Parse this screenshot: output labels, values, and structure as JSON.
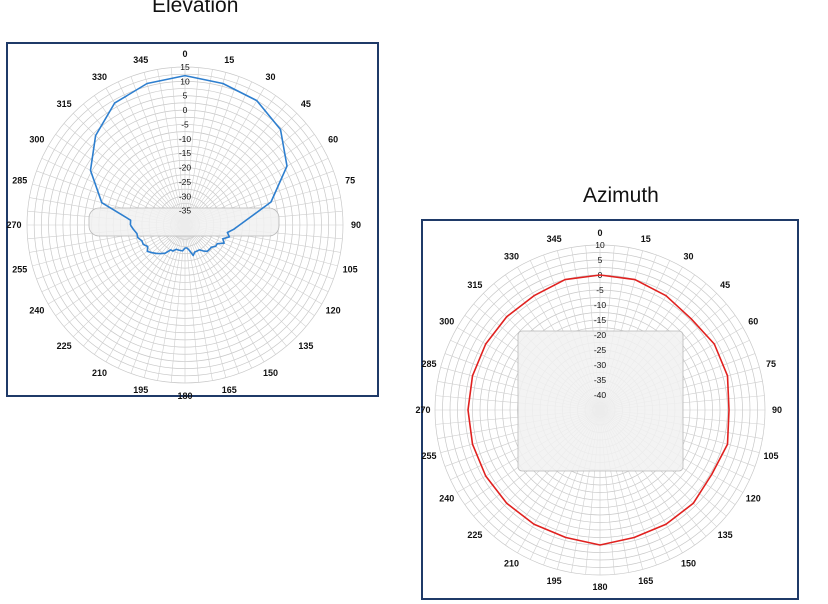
{
  "chart_data": [
    {
      "type": "polar-line",
      "title": "Elevation",
      "angle_labels": [
        "0",
        "15",
        "30",
        "45",
        "60",
        "75",
        "90",
        "105",
        "120",
        "135",
        "150",
        "165",
        "180",
        "195",
        "210",
        "225",
        "240",
        "255",
        "270",
        "285",
        "300",
        "315",
        "330",
        "345"
      ],
      "radial_ticks": [
        "15",
        "10",
        "5",
        "0",
        "-5",
        "-10",
        "-15",
        "-20",
        "-25",
        "-30",
        "-35"
      ],
      "rlim": [
        -40,
        15
      ],
      "grid": true,
      "series": [
        {
          "color": "#2e7fcf",
          "angle_deg": [
            270,
            275,
            285,
            300,
            315,
            330,
            345,
            0,
            15,
            30,
            45,
            60,
            75,
            90,
            95,
            100,
            105,
            110,
            115,
            120,
            125,
            130,
            135,
            140,
            145,
            150,
            155,
            160,
            165,
            170,
            175,
            180,
            185,
            190,
            195,
            200,
            205,
            210,
            215,
            220,
            225,
            230,
            235,
            240,
            245,
            250,
            255,
            260,
            265,
            270
          ],
          "values": [
            -21,
            -21,
            -10,
            -2,
            4,
            9,
            11,
            12,
            11,
            10,
            7,
            1,
            -9,
            -21,
            -23,
            -25,
            -24,
            -26,
            -25,
            -27,
            -27,
            -28,
            -28,
            -28,
            -29,
            -30,
            -30,
            -30,
            -29,
            -31,
            -32,
            -32,
            -31,
            -31,
            -31,
            -31,
            -30,
            -30,
            -28,
            -27,
            -26,
            -25,
            -24,
            -25,
            -24,
            -24,
            -23,
            -23,
            -22,
            -21
          ]
        }
      ]
    },
    {
      "type": "polar-line",
      "title": "Azimuth",
      "angle_labels": [
        "0",
        "15",
        "30",
        "45",
        "60",
        "75",
        "90",
        "105",
        "120",
        "135",
        "150",
        "165",
        "180",
        "195",
        "210",
        "225",
        "240",
        "255",
        "270",
        "285",
        "300",
        "315",
        "330",
        "345"
      ],
      "radial_ticks": [
        "10",
        "5",
        "0",
        "-5",
        "-10",
        "-15",
        "-20",
        "-25",
        "-30",
        "-35",
        "-40"
      ],
      "rlim": [
        -45,
        10
      ],
      "grid": true,
      "series": [
        {
          "color": "#e0211f",
          "angle_deg": [
            0,
            15,
            30,
            45,
            60,
            75,
            90,
            105,
            120,
            135,
            150,
            165,
            180,
            195,
            210,
            225,
            240,
            255,
            270,
            285,
            300,
            315,
            330,
            345,
            360
          ],
          "values": [
            0,
            0,
            -1,
            -2,
            -1,
            -1,
            -2,
            -1,
            -2,
            -1,
            -1,
            -1,
            0,
            -1,
            -1,
            -1,
            -1,
            -1,
            -1,
            -1,
            -1,
            -1,
            -1,
            0,
            0
          ]
        }
      ]
    }
  ]
}
